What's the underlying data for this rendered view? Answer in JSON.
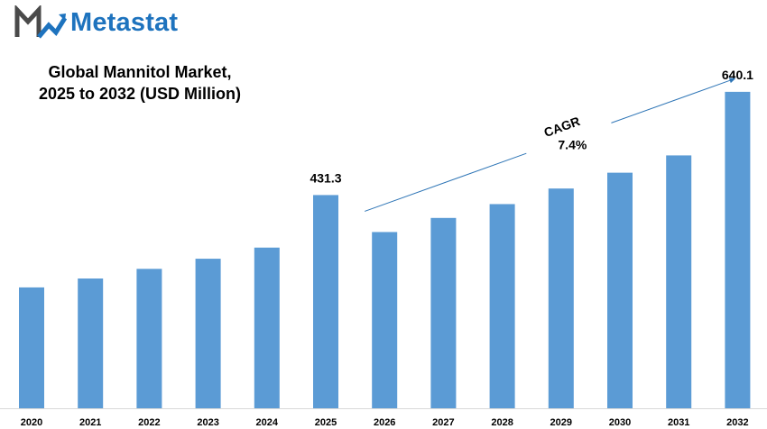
{
  "brand": {
    "name": "Metastat",
    "color": "#1e73be"
  },
  "chart_data": {
    "type": "bar",
    "title_lines": [
      "Global Mannitol Market,",
      "2025 to 2032 (USD Million)"
    ],
    "xlabel": "",
    "ylabel": "",
    "categories": [
      "2020",
      "2021",
      "2022",
      "2023",
      "2024",
      "2025",
      "2026",
      "2027",
      "2028",
      "2029",
      "2030",
      "2031",
      "2032"
    ],
    "values": [
      244.5,
      262.5,
      282,
      302.5,
      325,
      431.3,
      356.5,
      385,
      413,
      444.5,
      476.5,
      511.5,
      640.1
    ],
    "data_labels": [
      {
        "category": "2025",
        "text": "431.3"
      },
      {
        "category": "2032",
        "text": "640.1"
      }
    ],
    "annotation": {
      "label": "CAGR",
      "value": "7.4%",
      "arrow_from": "2026",
      "arrow_to": "2032"
    },
    "bar_color": "#5b9bd5",
    "arrow_color": "#2e75b6",
    "grid": false,
    "legend": "none",
    "ylim": [
      0,
      680
    ]
  }
}
